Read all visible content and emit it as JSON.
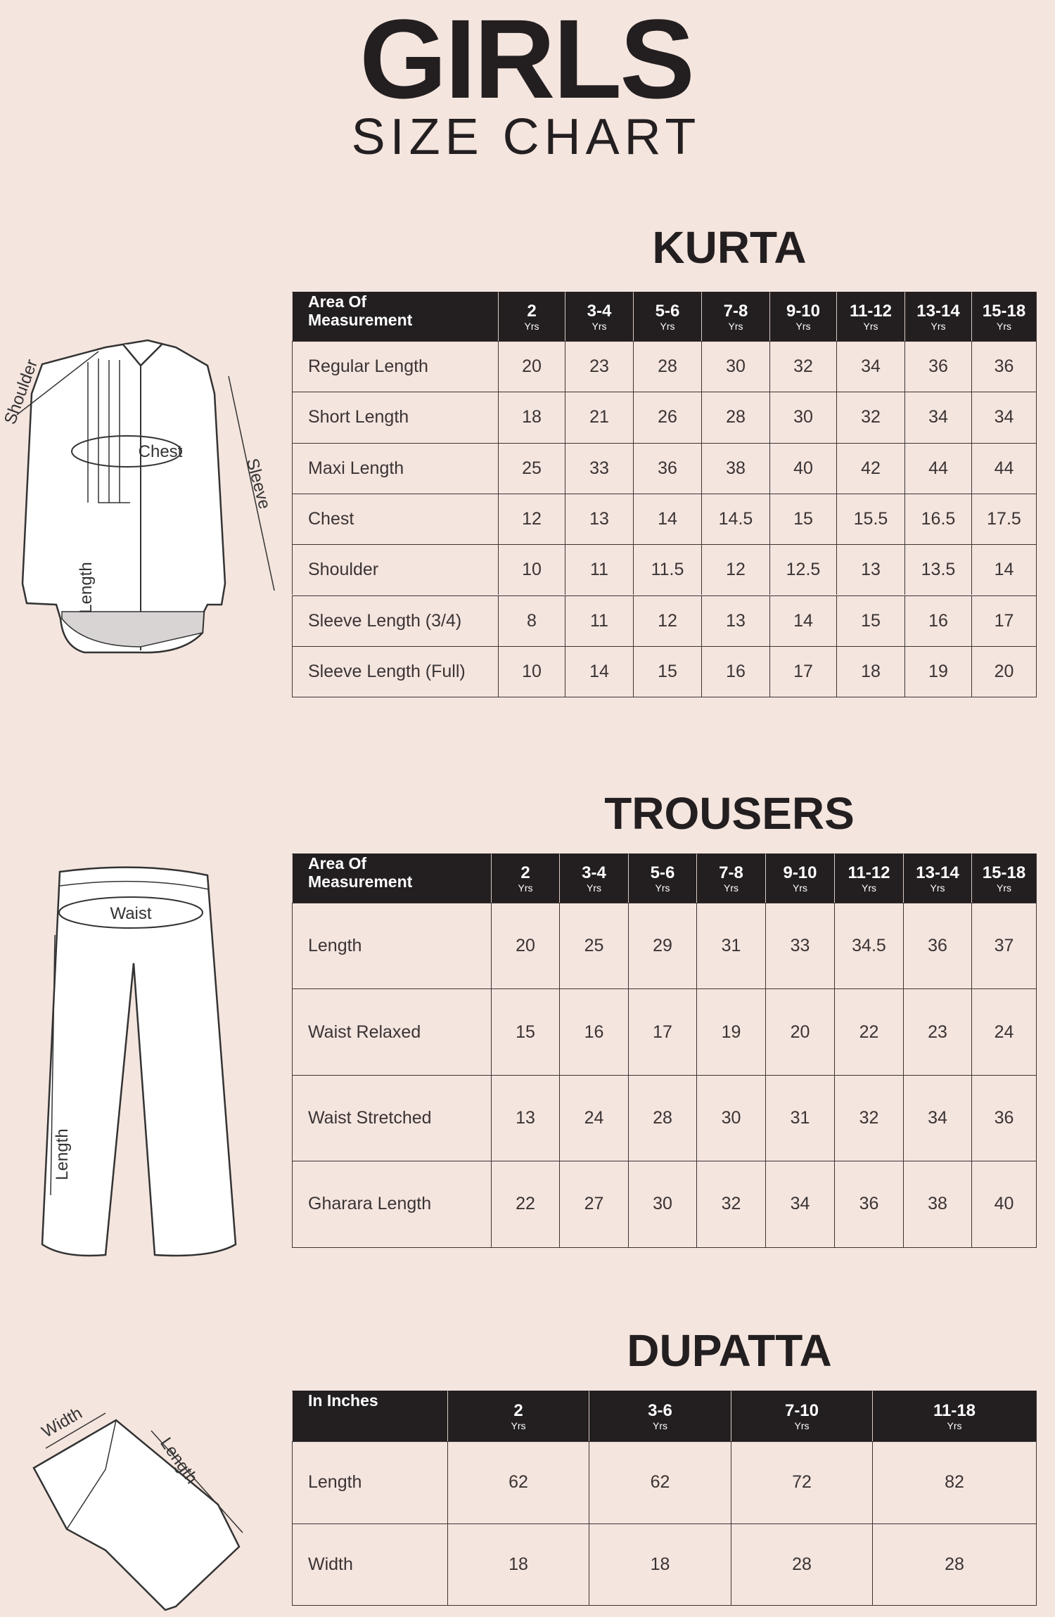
{
  "header": {
    "title": "GIRLS",
    "subtitle": "SIZE CHART"
  },
  "illustrations": {
    "kurta": {
      "shoulder": "Shoulder",
      "chest": "Chest",
      "sleeve": "Sleeve",
      "length": "Length"
    },
    "trousers": {
      "waist": "Waist",
      "length": "Length"
    },
    "dupatta": {
      "width": "Width",
      "length": "Length"
    }
  },
  "sections": [
    {
      "title": "KURTA",
      "header": {
        "label": "Area Of Measurement",
        "sizes": [
          {
            "size": "2",
            "unit": "Yrs"
          },
          {
            "size": "3-4",
            "unit": "Yrs"
          },
          {
            "size": "5-6",
            "unit": "Yrs"
          },
          {
            "size": "7-8",
            "unit": "Yrs"
          },
          {
            "size": "9-10",
            "unit": "Yrs"
          },
          {
            "size": "11-12",
            "unit": "Yrs"
          },
          {
            "size": "13-14",
            "unit": "Yrs"
          },
          {
            "size": "15-18",
            "unit": "Yrs"
          }
        ]
      },
      "rows": [
        {
          "label": "Regular Length",
          "values": [
            20,
            23,
            28,
            30,
            32,
            34,
            36,
            36
          ]
        },
        {
          "label": "Short Length",
          "values": [
            18,
            21,
            26,
            28,
            30,
            32,
            34,
            34
          ]
        },
        {
          "label": "Maxi Length",
          "values": [
            25,
            33,
            36,
            38,
            40,
            42,
            44,
            44
          ]
        },
        {
          "label": "Chest",
          "values": [
            12,
            13,
            14,
            14.5,
            15,
            15.5,
            16.5,
            17.5
          ]
        },
        {
          "label": "Shoulder",
          "values": [
            10,
            11,
            11.5,
            12,
            12.5,
            13,
            13.5,
            14
          ]
        },
        {
          "label": "Sleeve Length (3/4)",
          "values": [
            8,
            11,
            12,
            13,
            14,
            15,
            16,
            17
          ]
        },
        {
          "label": "Sleeve Length (Full)",
          "values": [
            10,
            14,
            15,
            16,
            17,
            18,
            19,
            20
          ]
        }
      ]
    },
    {
      "title": "TROUSERS",
      "header": {
        "label": "Area Of Measurement",
        "sizes": [
          {
            "size": "2",
            "unit": "Yrs"
          },
          {
            "size": "3-4",
            "unit": "Yrs"
          },
          {
            "size": "5-6",
            "unit": "Yrs"
          },
          {
            "size": "7-8",
            "unit": "Yrs"
          },
          {
            "size": "9-10",
            "unit": "Yrs"
          },
          {
            "size": "11-12",
            "unit": "Yrs"
          },
          {
            "size": "13-14",
            "unit": "Yrs"
          },
          {
            "size": "15-18",
            "unit": "Yrs"
          }
        ]
      },
      "rows": [
        {
          "label": "Length",
          "values": [
            20,
            25,
            29,
            31,
            33,
            34.5,
            36,
            37
          ]
        },
        {
          "label": "Waist Relaxed",
          "values": [
            15,
            16,
            17,
            19,
            20,
            22,
            23,
            24
          ]
        },
        {
          "label": "Waist Stretched",
          "values": [
            13,
            24,
            28,
            30,
            31,
            32,
            34,
            36
          ]
        },
        {
          "label": "Gharara Length",
          "values": [
            22,
            27,
            30,
            32,
            34,
            36,
            38,
            40
          ]
        }
      ]
    },
    {
      "title": "DUPATTA",
      "header": {
        "label": "In Inches",
        "sizes": [
          {
            "size": "2",
            "unit": "Yrs"
          },
          {
            "size": "3-6",
            "unit": "Yrs"
          },
          {
            "size": "7-10",
            "unit": "Yrs"
          },
          {
            "size": "11-18",
            "unit": "Yrs"
          }
        ]
      },
      "rows": [
        {
          "label": "Length",
          "values": [
            62,
            62,
            72,
            82
          ]
        },
        {
          "label": "Width",
          "values": [
            18,
            18,
            28,
            28
          ]
        }
      ]
    }
  ]
}
